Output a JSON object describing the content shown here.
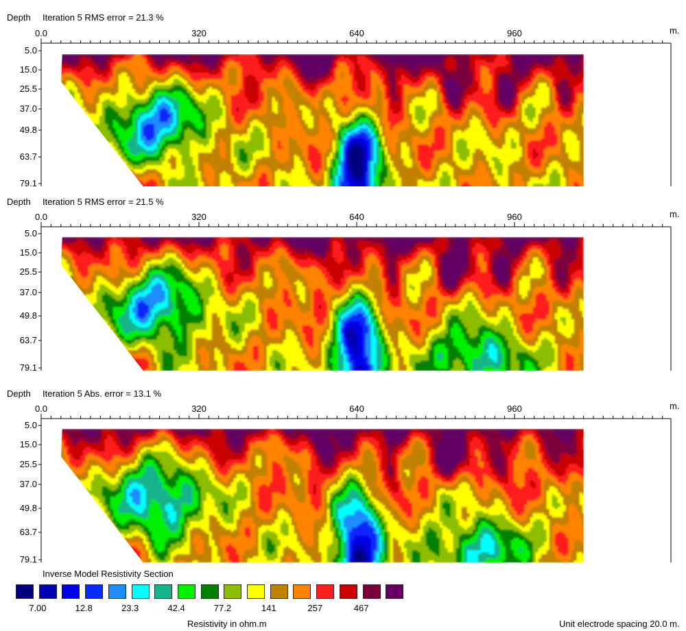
{
  "chart_data": [
    {
      "type": "heatmap",
      "depth_label": "Depth",
      "title": "Iteration 5 RMS error = 21.3 %",
      "unit": "m.",
      "x_ticks": [
        "0.0",
        "320",
        "640",
        "960"
      ],
      "depth_ticks": [
        "5.0",
        "15.0",
        "25.5",
        "37.0",
        "49.8",
        "63.7",
        "79.1"
      ],
      "xlim": [
        0,
        1300
      ],
      "ylim": [
        0,
        85
      ],
      "data_x_range": [
        40,
        1100
      ]
    },
    {
      "type": "heatmap",
      "depth_label": "Depth",
      "title": "Iteration 5 RMS error = 21.5 %",
      "unit": "m.",
      "x_ticks": [
        "0.0",
        "320",
        "640",
        "960"
      ],
      "depth_ticks": [
        "5.0",
        "15.0",
        "25.5",
        "37.0",
        "49.8",
        "63.7",
        "79.1"
      ],
      "xlim": [
        0,
        1300
      ],
      "ylim": [
        0,
        85
      ],
      "data_x_range": [
        40,
        1100
      ]
    },
    {
      "type": "heatmap",
      "depth_label": "Depth",
      "title": "Iteration 5 Abs. error = 13.1 %",
      "unit": "m.",
      "x_ticks": [
        "0.0",
        "320",
        "640",
        "960"
      ],
      "depth_ticks": [
        "5.0",
        "15.0",
        "25.5",
        "37.0",
        "49.8",
        "63.7",
        "79.1"
      ],
      "xlim": [
        0,
        1300
      ],
      "ylim": [
        0,
        85
      ],
      "data_x_range": [
        40,
        1100
      ]
    }
  ],
  "legend": {
    "title": "Inverse Model Resistivity Section",
    "colors": [
      "#00007f",
      "#0000b4",
      "#0000e6",
      "#0a28ff",
      "#1e8cff",
      "#00ffff",
      "#16b48c",
      "#00f000",
      "#008200",
      "#8cbe00",
      "#ffff00",
      "#c08200",
      "#ff8200",
      "#ff1e1e",
      "#c80000",
      "#7d003c",
      "#640064"
    ],
    "labels": [
      "7.00",
      "12.8",
      "23.3",
      "42.4",
      "77.2",
      "141",
      "257",
      "467"
    ],
    "unit_label": "Resistivity in ohm.m"
  },
  "footer": {
    "spacing": "Unit electrode spacing 20.0 m."
  }
}
